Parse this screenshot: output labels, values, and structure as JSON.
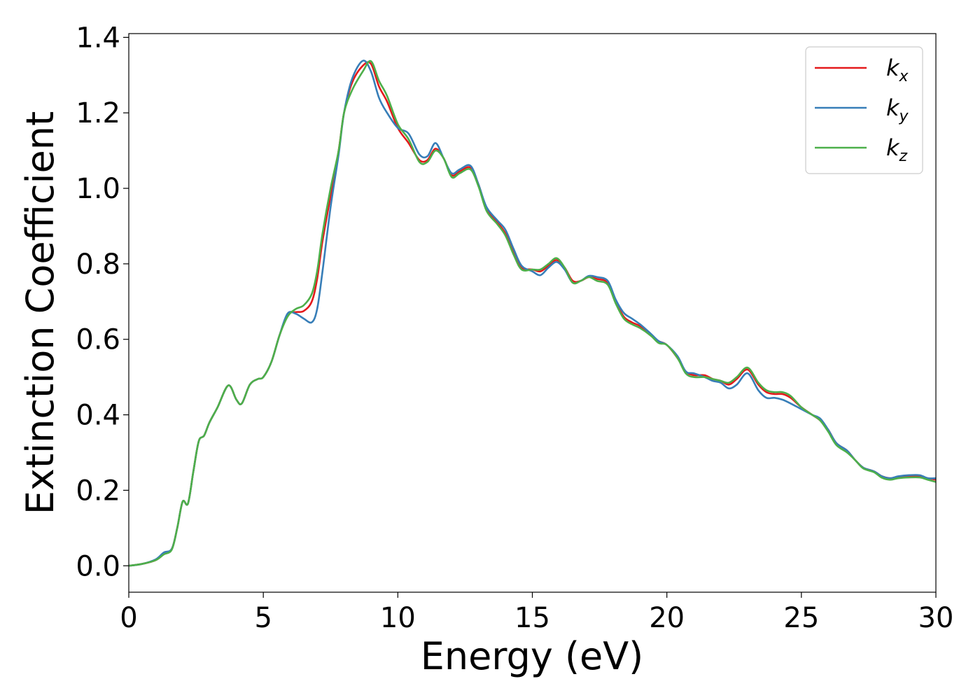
{
  "chart_data": {
    "type": "line",
    "title": "",
    "xlabel": "Energy (eV)",
    "ylabel": "Extinction Coefficient",
    "xlim": [
      0,
      30
    ],
    "ylim": [
      -0.07,
      1.41
    ],
    "xticks": [
      0,
      5,
      10,
      15,
      20,
      25,
      30
    ],
    "xtick_labels": [
      "0",
      "5",
      "10",
      "15",
      "20",
      "25",
      "30"
    ],
    "yticks": [
      0.0,
      0.2,
      0.4,
      0.6,
      0.8,
      1.0,
      1.2,
      1.4
    ],
    "ytick_labels": [
      "0.0",
      "0.2",
      "0.4",
      "0.6",
      "0.8",
      "1.0",
      "1.2",
      "1.4"
    ],
    "grid": false,
    "legend_position": "top-right",
    "x": [
      0,
      0.5,
      1.0,
      1.3,
      1.6,
      1.8,
      2.0,
      2.2,
      2.4,
      2.6,
      2.8,
      3.0,
      3.3,
      3.7,
      4.0,
      4.2,
      4.5,
      4.8,
      5.0,
      5.3,
      5.6,
      5.9,
      6.2,
      6.5,
      6.8,
      7.0,
      7.2,
      7.5,
      7.8,
      8.0,
      8.3,
      8.7,
      9.0,
      9.3,
      9.6,
      10.0,
      10.4,
      10.8,
      11.1,
      11.4,
      11.7,
      12.0,
      12.3,
      12.7,
      13.0,
      13.3,
      13.7,
      14.0,
      14.3,
      14.6,
      15.0,
      15.3,
      15.6,
      15.9,
      16.2,
      16.5,
      16.8,
      17.1,
      17.4,
      17.8,
      18.1,
      18.4,
      18.7,
      19.0,
      19.4,
      19.7,
      20.0,
      20.4,
      20.7,
      21.0,
      21.4,
      21.7,
      22.0,
      22.3,
      22.6,
      23.0,
      23.4,
      23.7,
      24.0,
      24.3,
      24.6,
      25.0,
      25.4,
      25.7,
      26.0,
      26.3,
      26.7,
      27.0,
      27.3,
      27.7,
      28.0,
      28.3,
      28.6,
      29.0,
      29.4,
      29.7,
      30.0
    ],
    "series": [
      {
        "name": "k",
        "subscript": "x",
        "color": "#e41a1c",
        "values": [
          0.0,
          0.005,
          0.015,
          0.032,
          0.045,
          0.1,
          0.17,
          0.165,
          0.25,
          0.33,
          0.345,
          0.38,
          0.42,
          0.478,
          0.44,
          0.43,
          0.48,
          0.495,
          0.5,
          0.54,
          0.61,
          0.665,
          0.672,
          0.675,
          0.7,
          0.76,
          0.86,
          0.98,
          1.1,
          1.2,
          1.28,
          1.325,
          1.33,
          1.27,
          1.23,
          1.16,
          1.12,
          1.075,
          1.075,
          1.105,
          1.08,
          1.035,
          1.045,
          1.055,
          1.01,
          0.945,
          0.91,
          0.88,
          0.83,
          0.79,
          0.785,
          0.78,
          0.795,
          0.81,
          0.79,
          0.755,
          0.755,
          0.765,
          0.76,
          0.75,
          0.7,
          0.66,
          0.645,
          0.635,
          0.61,
          0.595,
          0.585,
          0.55,
          0.515,
          0.505,
          0.505,
          0.495,
          0.49,
          0.48,
          0.495,
          0.52,
          0.48,
          0.46,
          0.455,
          0.455,
          0.445,
          0.42,
          0.4,
          0.385,
          0.36,
          0.325,
          0.305,
          0.28,
          0.26,
          0.25,
          0.237,
          0.232,
          0.235,
          0.237,
          0.237,
          0.232,
          0.228
        ]
      },
      {
        "name": "k",
        "subscript": "y",
        "color": "#377eb8",
        "values": [
          0.0,
          0.005,
          0.017,
          0.035,
          0.045,
          0.1,
          0.17,
          0.165,
          0.25,
          0.33,
          0.345,
          0.38,
          0.42,
          0.478,
          0.44,
          0.43,
          0.48,
          0.495,
          0.5,
          0.54,
          0.61,
          0.668,
          0.668,
          0.655,
          0.645,
          0.68,
          0.78,
          0.95,
          1.09,
          1.2,
          1.29,
          1.338,
          1.31,
          1.24,
          1.2,
          1.16,
          1.145,
          1.09,
          1.085,
          1.12,
          1.08,
          1.04,
          1.05,
          1.06,
          1.01,
          0.95,
          0.915,
          0.89,
          0.84,
          0.795,
          0.78,
          0.77,
          0.79,
          0.805,
          0.785,
          0.75,
          0.755,
          0.768,
          0.765,
          0.755,
          0.705,
          0.67,
          0.655,
          0.64,
          0.615,
          0.595,
          0.585,
          0.555,
          0.515,
          0.51,
          0.5,
          0.49,
          0.485,
          0.47,
          0.48,
          0.51,
          0.465,
          0.445,
          0.445,
          0.44,
          0.43,
          0.415,
          0.4,
          0.39,
          0.36,
          0.325,
          0.305,
          0.28,
          0.26,
          0.25,
          0.237,
          0.232,
          0.237,
          0.24,
          0.24,
          0.232,
          0.232
        ]
      },
      {
        "name": "k",
        "subscript": "z",
        "color": "#4daf4a",
        "values": [
          0.0,
          0.005,
          0.015,
          0.03,
          0.043,
          0.1,
          0.17,
          0.165,
          0.25,
          0.33,
          0.345,
          0.38,
          0.42,
          0.478,
          0.44,
          0.43,
          0.48,
          0.495,
          0.5,
          0.54,
          0.61,
          0.66,
          0.68,
          0.69,
          0.72,
          0.78,
          0.88,
          1.0,
          1.1,
          1.2,
          1.26,
          1.31,
          1.337,
          1.285,
          1.245,
          1.17,
          1.13,
          1.07,
          1.07,
          1.1,
          1.08,
          1.03,
          1.04,
          1.05,
          1.005,
          0.94,
          0.905,
          0.875,
          0.825,
          0.785,
          0.785,
          0.785,
          0.8,
          0.815,
          0.79,
          0.75,
          0.755,
          0.765,
          0.755,
          0.745,
          0.695,
          0.655,
          0.64,
          0.63,
          0.61,
          0.59,
          0.585,
          0.55,
          0.51,
          0.5,
          0.5,
          0.495,
          0.49,
          0.485,
          0.5,
          0.525,
          0.485,
          0.465,
          0.46,
          0.46,
          0.45,
          0.42,
          0.4,
          0.385,
          0.355,
          0.32,
          0.3,
          0.28,
          0.258,
          0.248,
          0.233,
          0.228,
          0.232,
          0.234,
          0.234,
          0.228,
          0.222
        ]
      }
    ]
  }
}
